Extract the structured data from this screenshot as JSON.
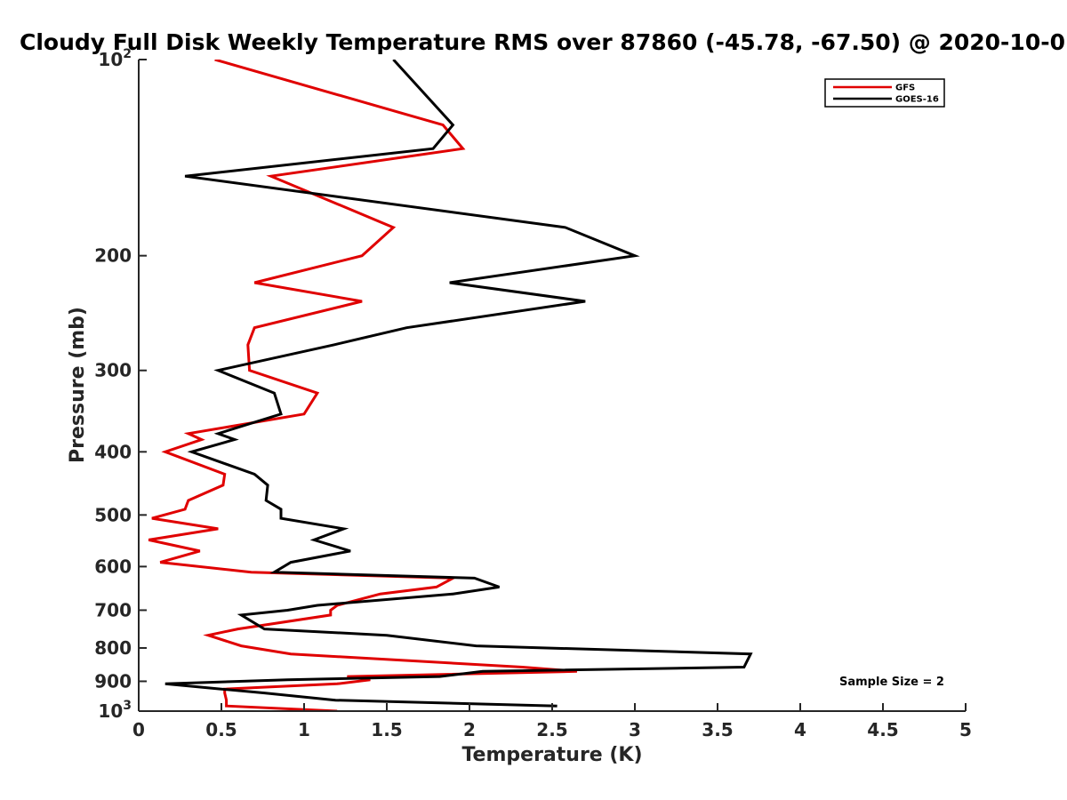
{
  "chart_data": {
    "type": "line",
    "title": "Cloudy Full Disk Weekly Temperature RMS over 87860 (-45.78, -67.50) @ 2020-10-0",
    "xlabel": "Temperature (K)",
    "ylabel": "Pressure (mb)",
    "xlim": [
      0,
      5
    ],
    "ylim": [
      100,
      1000
    ],
    "y_scale": "log",
    "y_reversed": true,
    "grid": false,
    "x_ticks": [
      {
        "value": 0,
        "label": "0"
      },
      {
        "value": 0.5,
        "label": "0.5"
      },
      {
        "value": 1,
        "label": "1"
      },
      {
        "value": 1.5,
        "label": "1.5"
      },
      {
        "value": 2,
        "label": "2"
      },
      {
        "value": 2.5,
        "label": "2.5"
      },
      {
        "value": 3,
        "label": "3"
      },
      {
        "value": 3.5,
        "label": "3.5"
      },
      {
        "value": 4,
        "label": "4"
      },
      {
        "value": 4.5,
        "label": "4.5"
      },
      {
        "value": 5,
        "label": "5"
      }
    ],
    "y_ticks": [
      {
        "value": 100,
        "label": "10",
        "sup": "2"
      },
      {
        "value": 200,
        "label": "200"
      },
      {
        "value": 300,
        "label": "300"
      },
      {
        "value": 400,
        "label": "400"
      },
      {
        "value": 500,
        "label": "500"
      },
      {
        "value": 600,
        "label": "600"
      },
      {
        "value": 700,
        "label": "700"
      },
      {
        "value": 800,
        "label": "800"
      },
      {
        "value": 900,
        "label": "900"
      },
      {
        "value": 1000,
        "label": "10",
        "sup": "3"
      }
    ],
    "legend_position": "top-right",
    "annotation": "Sample Size = 2",
    "series": [
      {
        "name": "GFS",
        "color": "#e00000",
        "points": [
          [
            0.46,
            100
          ],
          [
            1.84,
            126
          ],
          [
            1.96,
            137
          ],
          [
            0.8,
            151
          ],
          [
            1.54,
            181
          ],
          [
            1.35,
            200
          ],
          [
            0.7,
            220
          ],
          [
            1.35,
            235
          ],
          [
            0.7,
            258
          ],
          [
            0.66,
            274
          ],
          [
            0.67,
            300
          ],
          [
            1.08,
            325
          ],
          [
            1.0,
            350
          ],
          [
            0.3,
            375
          ],
          [
            0.38,
            383
          ],
          [
            0.16,
            400
          ],
          [
            0.52,
            433
          ],
          [
            0.51,
            450
          ],
          [
            0.3,
            475
          ],
          [
            0.28,
            490
          ],
          [
            0.08,
            506
          ],
          [
            0.48,
            525
          ],
          [
            0.06,
            546
          ],
          [
            0.37,
            568
          ],
          [
            0.13,
            591
          ],
          [
            0.68,
            612
          ],
          [
            1.9,
            625
          ],
          [
            1.8,
            645
          ],
          [
            1.46,
            661
          ],
          [
            1.2,
            688
          ],
          [
            1.16,
            700
          ],
          [
            1.16,
            712
          ],
          [
            0.6,
            748
          ],
          [
            0.42,
            765
          ],
          [
            0.62,
            794
          ],
          [
            0.92,
            817
          ],
          [
            2.32,
            856
          ],
          [
            2.65,
            869
          ],
          [
            1.26,
            885
          ],
          [
            1.4,
            895
          ],
          [
            1.2,
            908
          ],
          [
            0.52,
            925
          ],
          [
            0.52,
            938
          ],
          [
            0.53,
            962
          ],
          [
            0.53,
            982
          ],
          [
            1.2,
            1000
          ]
        ]
      },
      {
        "name": "GOES-16",
        "color": "#000000",
        "points": [
          [
            1.54,
            100
          ],
          [
            1.9,
            126
          ],
          [
            1.78,
            137
          ],
          [
            0.28,
            151
          ],
          [
            2.58,
            181
          ],
          [
            3.0,
            200
          ],
          [
            1.88,
            220
          ],
          [
            2.7,
            235
          ],
          [
            1.62,
            258
          ],
          [
            1.18,
            274
          ],
          [
            0.48,
            300
          ],
          [
            0.82,
            325
          ],
          [
            0.86,
            350
          ],
          [
            0.48,
            375
          ],
          [
            0.58,
            383
          ],
          [
            0.32,
            400
          ],
          [
            0.7,
            433
          ],
          [
            0.78,
            450
          ],
          [
            0.77,
            475
          ],
          [
            0.86,
            490
          ],
          [
            0.86,
            506
          ],
          [
            1.24,
            525
          ],
          [
            1.06,
            546
          ],
          [
            1.28,
            568
          ],
          [
            0.92,
            591
          ],
          [
            0.82,
            612
          ],
          [
            2.03,
            625
          ],
          [
            2.18,
            645
          ],
          [
            1.9,
            661
          ],
          [
            1.08,
            688
          ],
          [
            0.9,
            700
          ],
          [
            0.62,
            712
          ],
          [
            0.76,
            748
          ],
          [
            1.5,
            765
          ],
          [
            2.04,
            794
          ],
          [
            3.7,
            817
          ],
          [
            3.66,
            856
          ],
          [
            2.08,
            869
          ],
          [
            1.82,
            885
          ],
          [
            0.9,
            895
          ],
          [
            0.16,
            908
          ],
          [
            0.5,
            925
          ],
          [
            0.76,
            938
          ],
          [
            1.19,
            962
          ],
          [
            2.53,
            982
          ]
        ]
      }
    ]
  }
}
